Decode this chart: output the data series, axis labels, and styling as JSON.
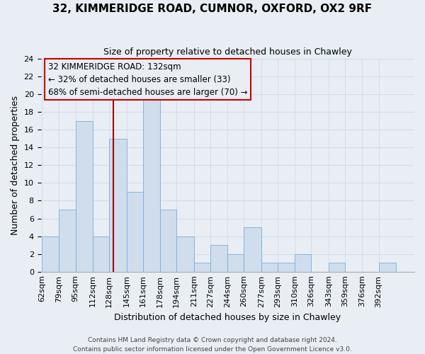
{
  "title": "32, KIMMERIDGE ROAD, CUMNOR, OXFORD, OX2 9RF",
  "subtitle": "Size of property relative to detached houses in Chawley",
  "xlabel": "Distribution of detached houses by size in Chawley",
  "ylabel": "Number of detached properties",
  "bar_labels": [
    "62sqm",
    "79sqm",
    "95sqm",
    "112sqm",
    "128sqm",
    "145sqm",
    "161sqm",
    "178sqm",
    "194sqm",
    "211sqm",
    "227sqm",
    "244sqm",
    "260sqm",
    "277sqm",
    "293sqm",
    "310sqm",
    "326sqm",
    "343sqm",
    "359sqm",
    "376sqm",
    "392sqm"
  ],
  "bar_values": [
    4,
    7,
    17,
    4,
    15,
    9,
    20,
    7,
    4,
    1,
    3,
    2,
    5,
    1,
    1,
    2,
    0,
    1,
    0,
    0,
    1
  ],
  "bar_edges": [
    62,
    79,
    95,
    112,
    128,
    145,
    161,
    178,
    194,
    211,
    227,
    244,
    260,
    277,
    293,
    310,
    326,
    343,
    359,
    376,
    392,
    409
  ],
  "bar_color": "#cfdded",
  "bar_edge_color": "#7bafd4",
  "grid_color": "#d0dce8",
  "bg_color": "#e8eef4",
  "axes_bg_color": "#e8eef4",
  "ylim": [
    0,
    24
  ],
  "yticks": [
    0,
    2,
    4,
    6,
    8,
    10,
    12,
    14,
    16,
    18,
    20,
    22,
    24
  ],
  "property_line_x": 132,
  "property_line_color": "#aa0000",
  "annotation_line1": "32 KIMMERIDGE ROAD: 132sqm",
  "annotation_line2": "← 32% of detached houses are smaller (33)",
  "annotation_line3": "68% of semi-detached houses are larger (70) →",
  "ann_box_edge_color": "#cc0000",
  "footer_line1": "Contains HM Land Registry data © Crown copyright and database right 2024.",
  "footer_line2": "Contains public sector information licensed under the Open Government Licence v3.0.",
  "title_fontsize": 11,
  "subtitle_fontsize": 9,
  "xlabel_fontsize": 9,
  "ylabel_fontsize": 9,
  "tick_fontsize": 8,
  "ann_fontsize": 8.5,
  "footer_fontsize": 6.5
}
